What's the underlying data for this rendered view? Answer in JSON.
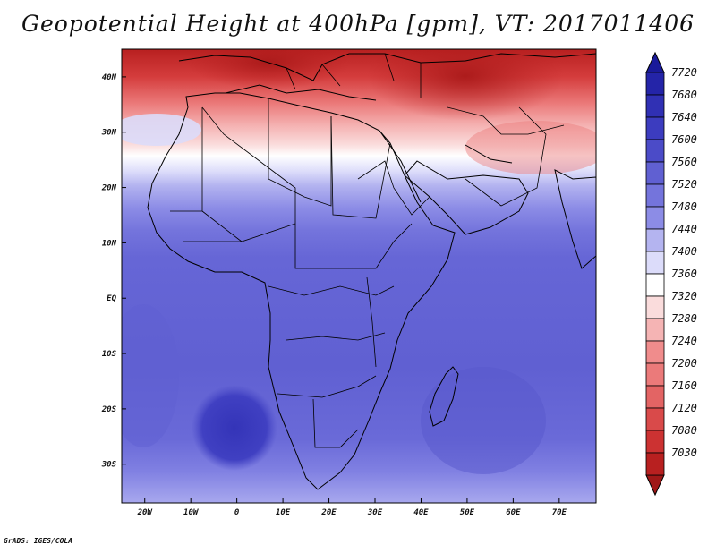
{
  "title": "Geopotential Height at 400hPa [gpm], VT: 2017011406",
  "footer": "GrADS: IGES/COLA",
  "map": {
    "region": "Africa",
    "lon_range": [
      -25,
      78
    ],
    "lat_range": [
      -37,
      45
    ],
    "x_ticks": [
      {
        "lon": -20,
        "label": "20W"
      },
      {
        "lon": -10,
        "label": "10W"
      },
      {
        "lon": 0,
        "label": "0"
      },
      {
        "lon": 10,
        "label": "10E"
      },
      {
        "lon": 20,
        "label": "20E"
      },
      {
        "lon": 30,
        "label": "30E"
      },
      {
        "lon": 40,
        "label": "40E"
      },
      {
        "lon": 50,
        "label": "50E"
      },
      {
        "lon": 60,
        "label": "60E"
      },
      {
        "lon": 70,
        "label": "70E"
      }
    ],
    "y_ticks": [
      {
        "lat": 40,
        "label": "40N"
      },
      {
        "lat": 30,
        "label": "30N"
      },
      {
        "lat": 20,
        "label": "20N"
      },
      {
        "lat": 10,
        "label": "10N"
      },
      {
        "lat": 0,
        "label": "EQ"
      },
      {
        "lat": -10,
        "label": "10S"
      },
      {
        "lat": -20,
        "label": "20S"
      },
      {
        "lat": -30,
        "label": "30S"
      }
    ]
  },
  "colorbar": {
    "levels": [
      {
        "label": "7720",
        "color": "#2424a8"
      },
      {
        "label": "7680",
        "color": "#3030b4"
      },
      {
        "label": "7640",
        "color": "#3c3cbf"
      },
      {
        "label": "7600",
        "color": "#4b4bc8"
      },
      {
        "label": "7560",
        "color": "#6060d2"
      },
      {
        "label": "7520",
        "color": "#7474dc"
      },
      {
        "label": "7480",
        "color": "#8c8ce6"
      },
      {
        "label": "7440",
        "color": "#b4b4f0"
      },
      {
        "label": "7400",
        "color": "#dcdcfa"
      },
      {
        "label": "7360",
        "color": "#ffffff"
      },
      {
        "label": "7320",
        "color": "#fadcdc"
      },
      {
        "label": "7280",
        "color": "#f5b4b4"
      },
      {
        "label": "7240",
        "color": "#f08c8c"
      },
      {
        "label": "7200",
        "color": "#eb7a7a"
      },
      {
        "label": "7160",
        "color": "#e36464"
      },
      {
        "label": "7120",
        "color": "#d94a4a"
      },
      {
        "label": "7080",
        "color": "#cc3232"
      },
      {
        "label": "7030",
        "color": "#b82020"
      }
    ],
    "top_arrow_color": "#1a1a9a",
    "bottom_arrow_color": "#a01818"
  }
}
